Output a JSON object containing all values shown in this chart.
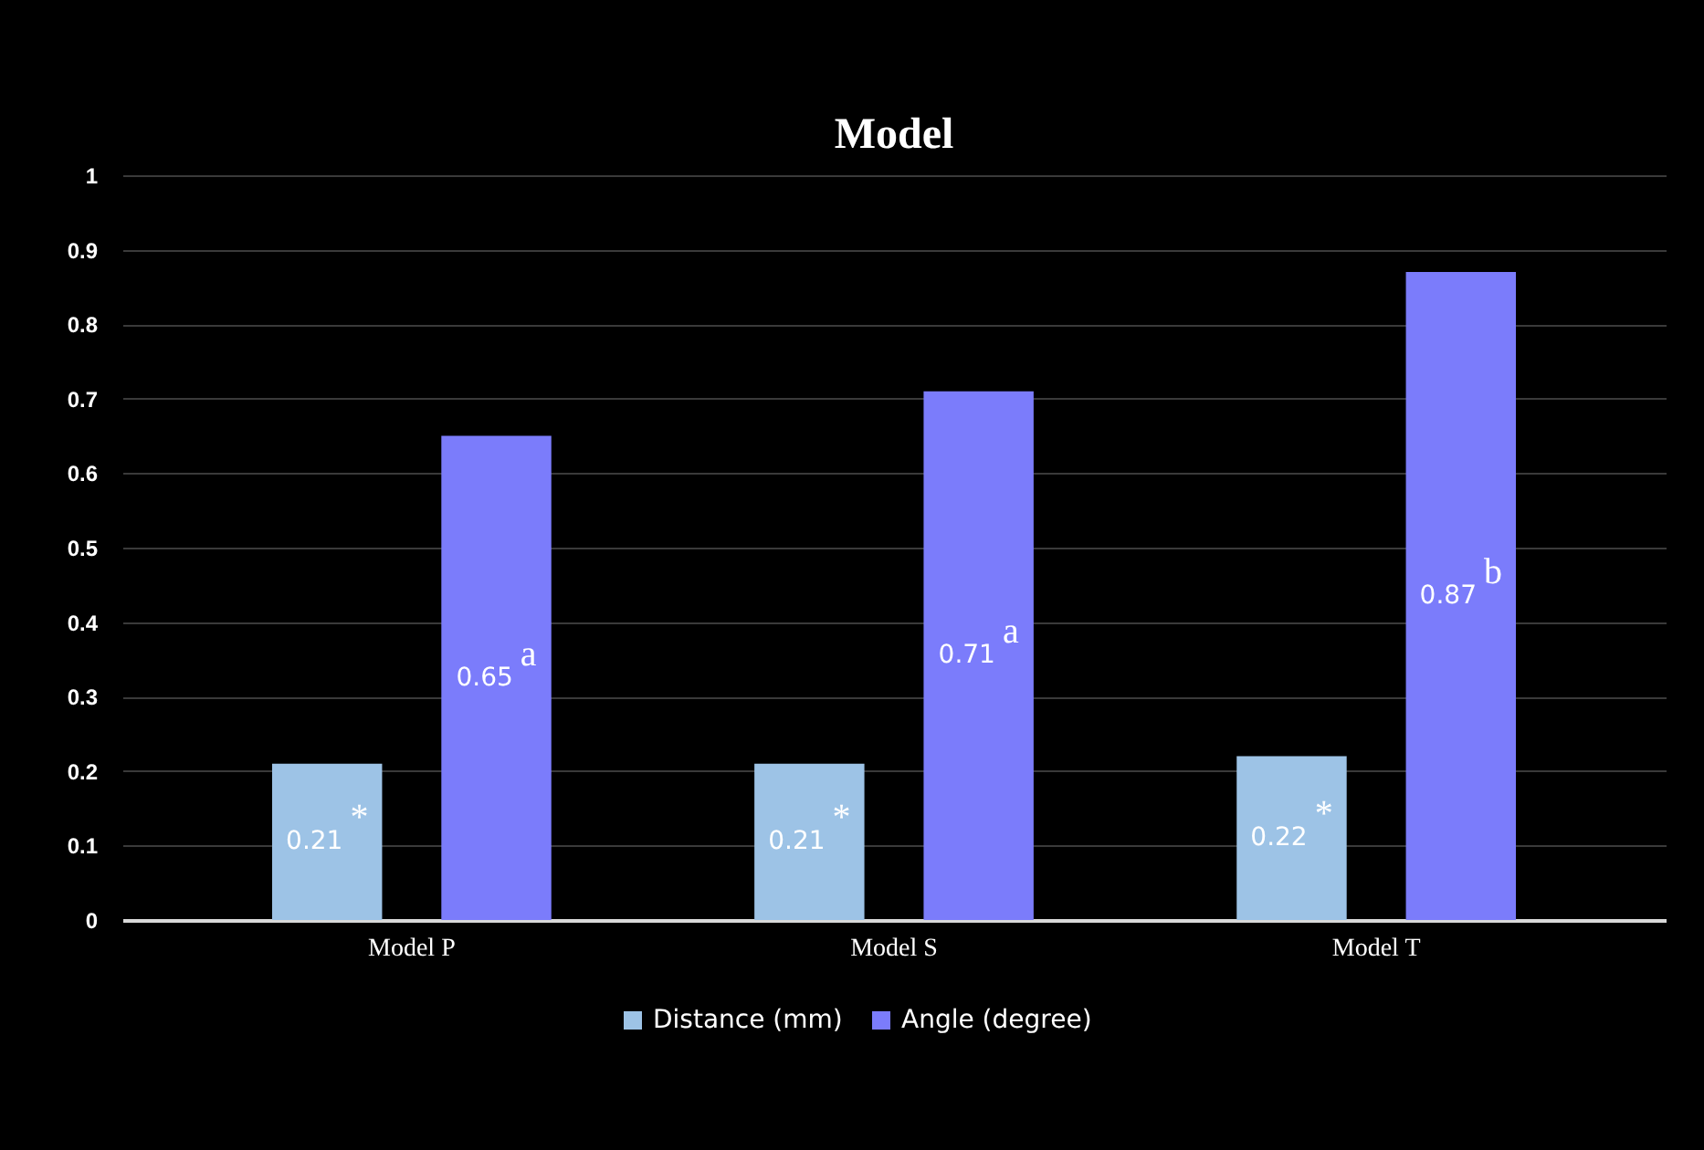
{
  "chart_data": {
    "type": "bar",
    "title": "Model",
    "categories": [
      "Model P",
      "Model S",
      "Model T"
    ],
    "series": [
      {
        "name": "Distance (mm)",
        "color": "#9dc3e6",
        "values": [
          0.21,
          0.21,
          0.22
        ],
        "value_labels": [
          "0.21$^{*}$",
          "0.21$^{*}$",
          "0.22$^{*}$"
        ]
      },
      {
        "name": "Angle (degree)",
        "color": "#7b7cfb",
        "values": [
          0.65,
          0.71,
          0.87
        ],
        "value_labels": [
          "0.65$^{a}$",
          "0.71$^{a}$",
          "0.87$^{b}$"
        ]
      }
    ],
    "ylim": [
      0,
      1
    ],
    "yticks": [
      {
        "value": 0,
        "label": "0"
      },
      0.1,
      0.2,
      0.3,
      0.4,
      0.5,
      0.6,
      0.7,
      0.8,
      0.9,
      {
        "value": 1,
        "label": "1"
      }
    ],
    "grid": "y",
    "legend": "bottom"
  }
}
